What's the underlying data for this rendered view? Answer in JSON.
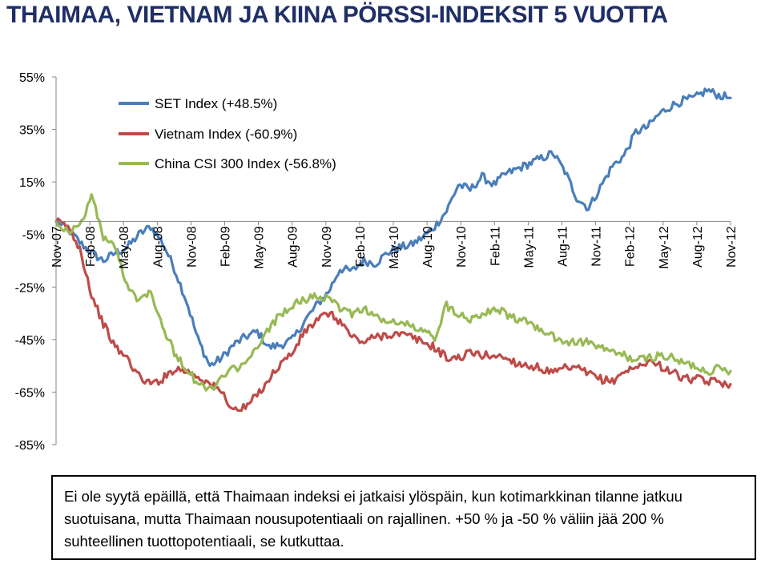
{
  "title": "THAIMAA, VIETNAM JA KIINA  PÖRSSI-INDEKSIT 5 VUOTTA",
  "note_lines": [
    "Ei ole syytä epäillä, että Thaimaan indeksi ei jatkaisi ylöspäin, kun kotimarkkinan tilanne jatkuu",
    "suotuisana, mutta Thaimaan nousupotentiaali on rajallinen. +50 % ja -50 % väliin jää 200 %",
    "suhteellinen tuottopotentiaali, se kutkuttaa."
  ],
  "chart_data": {
    "type": "line",
    "title": "",
    "xlabel": "",
    "ylabel": "",
    "ylim": [
      -85,
      55
    ],
    "y_ticks": [
      "55%",
      "35%",
      "15%",
      "-5%",
      "-25%",
      "-45%",
      "-65%",
      "-85%"
    ],
    "y_tick_values": [
      55,
      35,
      15,
      -5,
      -25,
      -45,
      -65,
      -85
    ],
    "x_ticks": [
      "Nov-07",
      "Feb-08",
      "May-08",
      "Aug-08",
      "Nov-08",
      "Feb-09",
      "May-09",
      "Aug-09",
      "Nov-09",
      "Feb-10",
      "May-10",
      "Aug-10",
      "Nov-10",
      "Feb-11",
      "May-11",
      "Aug-11",
      "Nov-11",
      "Feb-12",
      "May-12",
      "Aug-12",
      "Nov-12"
    ],
    "x_axis_at": 0,
    "grid": false,
    "legend_position": "top-left",
    "colors": {
      "set": "#4a7ebb",
      "vietnam": "#be4b48",
      "china": "#98b954",
      "axis": "#868686"
    },
    "series": [
      {
        "name": "SET Index (+48.5%)",
        "color": "#4a7ebb",
        "points": [
          [
            0,
            0
          ],
          [
            1,
            -3
          ],
          [
            2,
            -8
          ],
          [
            3,
            -12
          ],
          [
            4,
            -15
          ],
          [
            5,
            -12
          ],
          [
            6,
            -10
          ],
          [
            7,
            -5
          ],
          [
            8,
            -2
          ],
          [
            9,
            -8
          ],
          [
            10,
            -18
          ],
          [
            11,
            -30
          ],
          [
            12,
            -45
          ],
          [
            13,
            -55
          ],
          [
            14,
            -52
          ],
          [
            15,
            -47
          ],
          [
            16,
            -44
          ],
          [
            17,
            -42
          ],
          [
            18,
            -48
          ],
          [
            19,
            -47
          ],
          [
            20,
            -45
          ],
          [
            21,
            -38
          ],
          [
            22,
            -32
          ],
          [
            23,
            -27
          ],
          [
            24,
            -18
          ],
          [
            25,
            -19
          ],
          [
            26,
            -15
          ],
          [
            27,
            -16
          ],
          [
            28,
            -12
          ],
          [
            29,
            -10
          ],
          [
            30,
            -9
          ],
          [
            31,
            -6
          ],
          [
            32,
            -2
          ],
          [
            33,
            4
          ],
          [
            34,
            14
          ],
          [
            35,
            12
          ],
          [
            36,
            17
          ],
          [
            37,
            14
          ],
          [
            38,
            18
          ],
          [
            39,
            20
          ],
          [
            40,
            22
          ],
          [
            41,
            24
          ],
          [
            42,
            26
          ],
          [
            43,
            19
          ],
          [
            44,
            9
          ],
          [
            45,
            5
          ],
          [
            46,
            13
          ],
          [
            47,
            21
          ],
          [
            48,
            25
          ],
          [
            49,
            34
          ],
          [
            50,
            36
          ],
          [
            51,
            41
          ],
          [
            52,
            44
          ],
          [
            53,
            46
          ],
          [
            54,
            47
          ],
          [
            55,
            50
          ],
          [
            56,
            48
          ],
          [
            57,
            47
          ]
        ]
      },
      {
        "name": "Vietnam Index (-60.9%)",
        "color": "#be4b48",
        "points": [
          [
            0,
            0
          ],
          [
            1,
            -2
          ],
          [
            2,
            -10
          ],
          [
            3,
            -28
          ],
          [
            4,
            -39
          ],
          [
            5,
            -48
          ],
          [
            6,
            -52
          ],
          [
            7,
            -59
          ],
          [
            8,
            -62
          ],
          [
            9,
            -60
          ],
          [
            10,
            -56
          ],
          [
            11,
            -57
          ],
          [
            12,
            -59
          ],
          [
            13,
            -62
          ],
          [
            14,
            -65
          ],
          [
            15,
            -72
          ],
          [
            16,
            -71
          ],
          [
            17,
            -66
          ],
          [
            18,
            -60
          ],
          [
            19,
            -54
          ],
          [
            20,
            -50
          ],
          [
            21,
            -42
          ],
          [
            22,
            -38
          ],
          [
            23,
            -35
          ],
          [
            24,
            -38
          ],
          [
            25,
            -44
          ],
          [
            26,
            -46
          ],
          [
            27,
            -44
          ],
          [
            28,
            -43
          ],
          [
            29,
            -43
          ],
          [
            30,
            -44
          ],
          [
            31,
            -46
          ],
          [
            32,
            -48
          ],
          [
            33,
            -52
          ],
          [
            34,
            -52
          ],
          [
            35,
            -50
          ],
          [
            36,
            -51
          ],
          [
            37,
            -51
          ],
          [
            38,
            -52
          ],
          [
            39,
            -54
          ],
          [
            40,
            -55
          ],
          [
            41,
            -56
          ],
          [
            42,
            -58
          ],
          [
            43,
            -56
          ],
          [
            44,
            -56
          ],
          [
            45,
            -58
          ],
          [
            46,
            -60
          ],
          [
            47,
            -61
          ],
          [
            48,
            -57
          ],
          [
            49,
            -56
          ],
          [
            50,
            -53
          ],
          [
            51,
            -55
          ],
          [
            52,
            -57
          ],
          [
            53,
            -60
          ],
          [
            54,
            -60
          ],
          [
            55,
            -61
          ],
          [
            56,
            -61
          ],
          [
            57,
            -62
          ]
        ]
      },
      {
        "name": "China CSI 300 Index (-56.8%)",
        "color": "#98b954",
        "points": [
          [
            0,
            0
          ],
          [
            1,
            -4
          ],
          [
            2,
            -2
          ],
          [
            3,
            10
          ],
          [
            4,
            -6
          ],
          [
            5,
            -10
          ],
          [
            6,
            -24
          ],
          [
            7,
            -30
          ],
          [
            8,
            -26
          ],
          [
            9,
            -40
          ],
          [
            10,
            -50
          ],
          [
            11,
            -56
          ],
          [
            12,
            -62
          ],
          [
            13,
            -64
          ],
          [
            14,
            -60
          ],
          [
            15,
            -56
          ],
          [
            16,
            -55
          ],
          [
            17,
            -48
          ],
          [
            18,
            -41
          ],
          [
            19,
            -35
          ],
          [
            20,
            -32
          ],
          [
            21,
            -30
          ],
          [
            22,
            -28
          ],
          [
            23,
            -30
          ],
          [
            24,
            -33
          ],
          [
            25,
            -35
          ],
          [
            26,
            -33
          ],
          [
            27,
            -36
          ],
          [
            28,
            -39
          ],
          [
            29,
            -38
          ],
          [
            30,
            -40
          ],
          [
            31,
            -42
          ],
          [
            32,
            -44
          ],
          [
            33,
            -32
          ],
          [
            34,
            -35
          ],
          [
            35,
            -37
          ],
          [
            36,
            -35
          ],
          [
            37,
            -33
          ],
          [
            38,
            -35
          ],
          [
            39,
            -38
          ],
          [
            40,
            -38
          ],
          [
            41,
            -42
          ],
          [
            42,
            -44
          ],
          [
            43,
            -46
          ],
          [
            44,
            -46
          ],
          [
            45,
            -46
          ],
          [
            46,
            -48
          ],
          [
            47,
            -50
          ],
          [
            48,
            -51
          ],
          [
            49,
            -53
          ],
          [
            50,
            -52
          ],
          [
            51,
            -51
          ],
          [
            52,
            -52
          ],
          [
            53,
            -54
          ],
          [
            54,
            -55
          ],
          [
            55,
            -57
          ],
          [
            56,
            -56
          ],
          [
            57,
            -57
          ]
        ]
      }
    ]
  }
}
